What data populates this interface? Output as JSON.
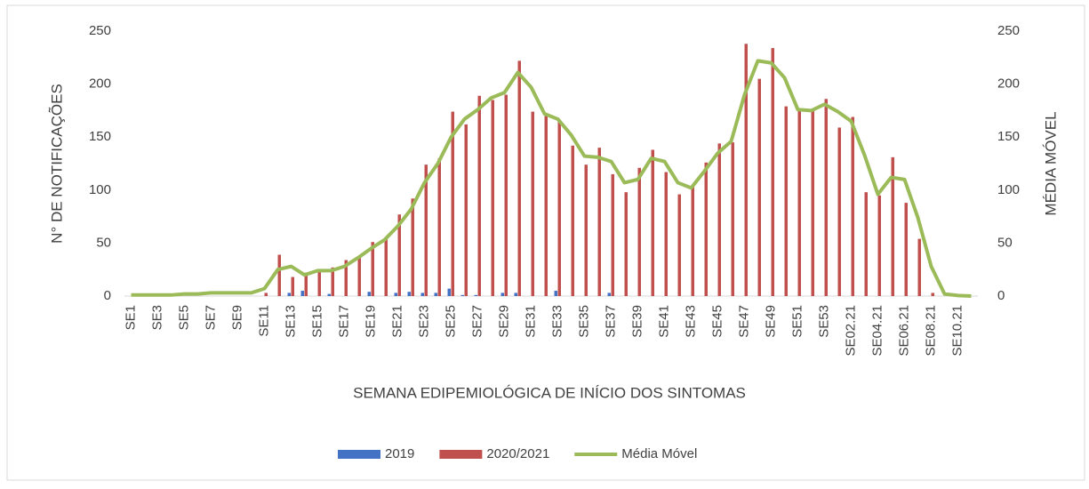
{
  "chart_data": {
    "type": "bar_line",
    "ylabel": "N° DE NOTIFICAÇÕES",
    "y2label": "MÉDIA MÓVEL",
    "xlabel": "SEMANA EDIPEMIOLÓGICA DE INÍCIO DOS SINTOMAS",
    "categories": [
      "SE1",
      null,
      "SE3",
      null,
      "SE5",
      null,
      "SE7",
      null,
      "SE9",
      null,
      "SE11",
      null,
      "SE13",
      null,
      "SE15",
      null,
      "SE17",
      null,
      "SE19",
      null,
      "SE21",
      null,
      "SE23",
      null,
      "SE25",
      null,
      "SE27",
      null,
      "SE29",
      null,
      "SE31",
      null,
      "SE33",
      null,
      "SE35",
      null,
      "SE37",
      null,
      "SE39",
      null,
      "SE41",
      null,
      "SE43",
      null,
      "SE45",
      null,
      "SE47",
      null,
      "SE49",
      null,
      "SE51",
      null,
      "SE53",
      null,
      "SE02.21",
      null,
      "SE04.21",
      null,
      "SE06.21",
      null,
      "SE08.21",
      null,
      "SE10.21",
      null
    ],
    "series": [
      {
        "name": "2019",
        "color": "#4472c4",
        "values": [
          0,
          0,
          0,
          0,
          0,
          0,
          0,
          0,
          0,
          0,
          0,
          0,
          3,
          5,
          0,
          2,
          0,
          0,
          4,
          0,
          3,
          4,
          3,
          3,
          7,
          1,
          1,
          0,
          3,
          3,
          0,
          0,
          5,
          0,
          0,
          0,
          3,
          0,
          0,
          0,
          0,
          0,
          0,
          0,
          0,
          0,
          0,
          0,
          0,
          0,
          0,
          0,
          0,
          0,
          0,
          0,
          0,
          0,
          0,
          0,
          0,
          0,
          0,
          0
        ]
      },
      {
        "name": "2020/2021",
        "color": "#c0504d",
        "values": [
          0,
          0,
          0,
          0,
          0,
          0,
          0,
          0,
          0,
          0,
          3,
          39,
          18,
          22,
          25,
          27,
          34,
          38,
          51,
          55,
          77,
          92,
          124,
          130,
          174,
          162,
          189,
          185,
          190,
          222,
          174,
          170,
          165,
          142,
          124,
          140,
          115,
          98,
          121,
          138,
          117,
          96,
          105,
          126,
          144,
          145,
          238,
          205,
          234,
          179,
          175,
          175,
          186,
          159,
          169,
          98,
          95,
          131,
          88,
          54,
          3,
          0,
          0,
          0
        ]
      },
      {
        "name": "Média Móvel",
        "color": "#9bbb59",
        "axis": "y2",
        "values": [
          1,
          1,
          1,
          1,
          2,
          2,
          3,
          3,
          3,
          3,
          7,
          25,
          28,
          20,
          24,
          24,
          28,
          36,
          45,
          53,
          66,
          82,
          107,
          125,
          150,
          167,
          176,
          187,
          192,
          211,
          197,
          172,
          167,
          152,
          132,
          131,
          127,
          107,
          110,
          130,
          127,
          107,
          102,
          118,
          135,
          146,
          190,
          222,
          220,
          206,
          176,
          175,
          181,
          174,
          165,
          133,
          96,
          112,
          110,
          74,
          28,
          2,
          0.5,
          0
        ]
      }
    ],
    "ylim": [
      0,
      250
    ],
    "yticks": [
      0,
      50,
      100,
      150,
      200,
      250
    ],
    "y2lim": [
      0,
      250
    ],
    "y2ticks": [
      0,
      50,
      100,
      150,
      200,
      250
    ],
    "legend": "bottom"
  }
}
